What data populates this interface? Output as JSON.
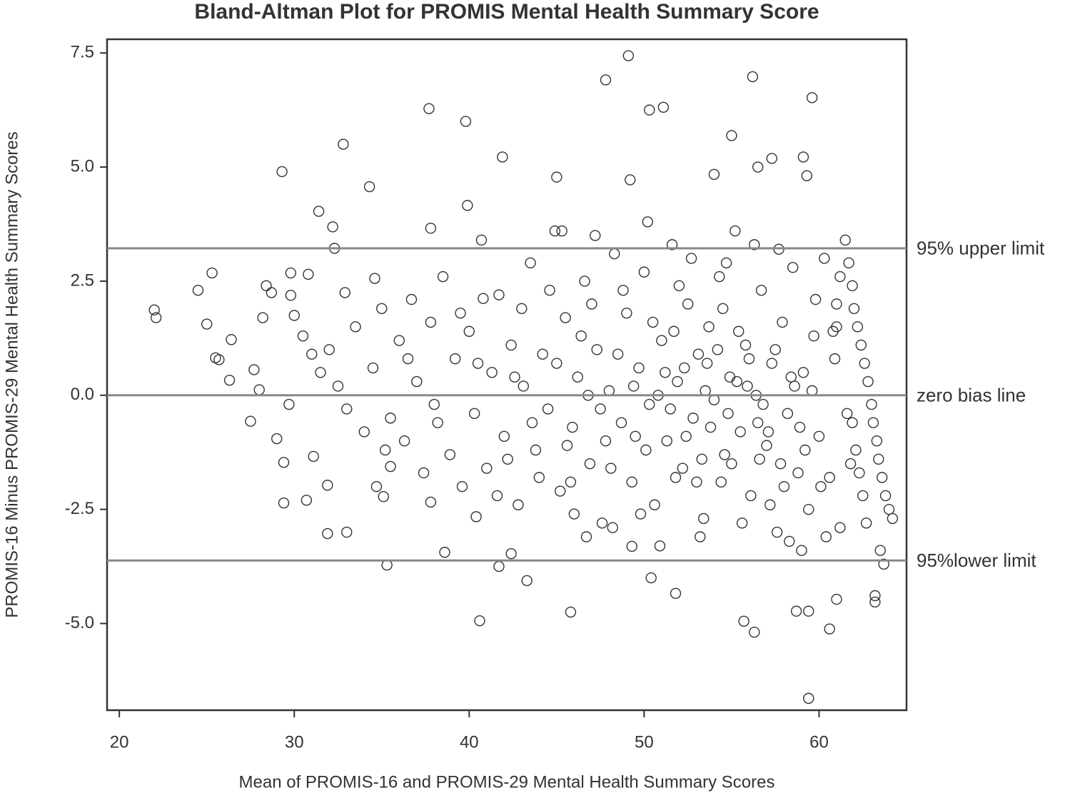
{
  "chart_data": {
    "type": "scatter",
    "title": "Bland-Altman Plot for PROMIS Mental Health Summary Score",
    "x_label": "Mean of PROMIS-16 and PROMIS-29 Mental Health Summary Scores",
    "y_label": "PROMIS-16 Minus PROMIS-29 Mental Health Summary Scores",
    "xlim": [
      19.3,
      65
    ],
    "ylim": [
      -6.9,
      7.8
    ],
    "xticks": [
      20,
      30,
      40,
      50,
      60
    ],
    "yticks": [
      7.5,
      {
        "value": 5,
        "label": "5.0"
      },
      2.5,
      {
        "value": 0,
        "label": "0.0"
      },
      -2.5,
      {
        "value": -5,
        "label": "-5.0"
      }
    ],
    "grid": false,
    "color": "#333333",
    "reference_lines": [
      {
        "value": 3.22,
        "label": "95% upper limit",
        "color": "#888888"
      },
      {
        "value": 0,
        "label": "zero bias line",
        "color": "#888888"
      },
      {
        "value": -3.62,
        "label": "95%lower limit",
        "color": "#888888"
      }
    ],
    "x": [
      22.0,
      22.1,
      24.5,
      25.3,
      25.0,
      25.5,
      25.7,
      26.4,
      26.3,
      27.5,
      27.7,
      28.0,
      28.2,
      28.4,
      28.7,
      29.3,
      29.0,
      29.4,
      29.4,
      29.7,
      29.8,
      29.8,
      30.0,
      30.7,
      30.8,
      31.1,
      31.4,
      31.9,
      31.9,
      32.2,
      32.3,
      32.8,
      33.0,
      32.9,
      34.3,
      34.6,
      34.7,
      35.1,
      35.3,
      35.5,
      37.7,
      37.8,
      37.8,
      38.6,
      39.8,
      39.9,
      40.6,
      40.4,
      40.8,
      41.9,
      41.7,
      43.3,
      42.4,
      45.0,
      45.8,
      47.8,
      49.1,
      50.3,
      51.1,
      49.2,
      49.3,
      50.4,
      51.8,
      54.0,
      55.0,
      56.2,
      59.6,
      59.4,
      56.3,
      60.6,
      55.7,
      59.1,
      59.3,
      57.3,
      56.5,
      63.2,
      63.2,
      61.0,
      59.4,
      58.7,
      30.5,
      31.0,
      31.5,
      32.0,
      32.5,
      33.0,
      33.5,
      34.0,
      34.5,
      35.0,
      35.5,
      36.0,
      36.3,
      36.7,
      37.0,
      37.4,
      37.8,
      38.2,
      38.5,
      38.9,
      39.2,
      39.6,
      40.0,
      40.3,
      40.7,
      41.0,
      41.3,
      41.7,
      42.0,
      42.4,
      42.8,
      43.1,
      43.5,
      43.8,
      44.2,
      44.5,
      44.9,
      45.2,
      45.5,
      45.9,
      46.2,
      46.6,
      46.9,
      47.3,
      47.6,
      48.0,
      48.3,
      48.7,
      49.0,
      49.3,
      49.7,
      50.0,
      50.3,
      50.6,
      51.0,
      51.3,
      51.6,
      51.9,
      52.2,
      52.5,
      52.8,
      53.1,
      53.4,
      53.7,
      54.0,
      54.3,
      54.6,
      54.9,
      55.2,
      55.5,
      55.8,
      56.1,
      56.4,
      56.7,
      57.0,
      57.3,
      57.6,
      57.9,
      58.2,
      58.5,
      58.8,
      59.1,
      59.4,
      59.7,
      60.0,
      60.3,
      60.6,
      60.9,
      61.2,
      42.2,
      43.0,
      44.0,
      45.0,
      46.0,
      47.0,
      47.8,
      48.5,
      49.5,
      50.5,
      51.5,
      52.0,
      53.0,
      53.5,
      54.5,
      55.0,
      56.0,
      56.5,
      57.5,
      58.0,
      58.6,
      59.2,
      59.8,
      60.4,
      61.0,
      61.6,
      52.3,
      53.8,
      55.3,
      56.8,
      54.2,
      51.8,
      50.8,
      49.8,
      48.8,
      47.5,
      46.4,
      45.6,
      44.6,
      43.6,
      42.6,
      41.6,
      40.5,
      39.5,
      38.0,
      36.5,
      35.2,
      57.2,
      58.3,
      59.0,
      60.1,
      55.6,
      53.2,
      50.9,
      48.2,
      46.7,
      54.7,
      56.3,
      57.7,
      52.7,
      50.2,
      47.2,
      45.3,
      61.5,
      61.7,
      61.9,
      62.0,
      62.2,
      62.4,
      62.6,
      62.8,
      63.0,
      63.1,
      63.3,
      63.4,
      63.6,
      63.8,
      64.0,
      64.2,
      62.7,
      62.5,
      62.3,
      62.1,
      61.9,
      61.8,
      63.7,
      63.5,
      61.2,
      61.0,
      60.8,
      51.2,
      52.4,
      53.6,
      54.8,
      55.9,
      57.1,
      58.4,
      50.1,
      51.7,
      53.3,
      54.4,
      55.4,
      56.6,
      57.8,
      58.9,
      59.6,
      49.4,
      48.1,
      46.8,
      45.8
    ],
    "y": [
      1.87,
      1.7,
      2.3,
      2.68,
      1.56,
      0.82,
      0.78,
      1.22,
      0.33,
      -0.57,
      0.56,
      0.12,
      1.7,
      2.4,
      2.25,
      4.9,
      -0.95,
      -2.36,
      -1.47,
      -0.2,
      2.68,
      2.19,
      1.75,
      -2.3,
      2.65,
      -1.34,
      4.03,
      -1.97,
      -3.03,
      3.69,
      3.22,
      5.5,
      -3.0,
      2.25,
      4.57,
      2.56,
      -2.0,
      -2.22,
      -3.72,
      -1.56,
      6.28,
      -2.34,
      3.66,
      -3.44,
      6.0,
      4.16,
      -4.94,
      -2.66,
      2.12,
      5.22,
      -3.75,
      -4.06,
      -3.47,
      4.78,
      -4.75,
      6.91,
      7.44,
      6.25,
      6.31,
      4.72,
      -3.31,
      -4.0,
      -4.34,
      4.84,
      5.69,
      6.98,
      6.52,
      -6.64,
      -5.19,
      -5.12,
      -4.95,
      5.22,
      4.81,
      5.19,
      5.0,
      -4.39,
      -4.53,
      -4.47,
      -4.73,
      -4.73,
      1.3,
      0.9,
      0.5,
      1.0,
      0.2,
      -0.3,
      1.5,
      -0.8,
      0.6,
      1.9,
      -0.5,
      1.2,
      -1.0,
      2.1,
      0.3,
      -1.7,
      1.6,
      -0.6,
      2.6,
      -1.3,
      0.8,
      -2.0,
      1.4,
      -0.4,
      3.4,
      -1.6,
      0.5,
      2.2,
      -0.9,
      1.1,
      -2.4,
      0.2,
      2.9,
      -1.2,
      0.9,
      -0.3,
      3.6,
      -2.1,
      1.7,
      -0.7,
      0.4,
      2.5,
      -1.5,
      1.0,
      -2.8,
      0.1,
      3.1,
      -0.6,
      1.8,
      -1.9,
      0.6,
      2.7,
      -0.2,
      -2.4,
      1.2,
      -1.0,
      3.3,
      0.3,
      -1.6,
      2.0,
      -0.5,
      0.9,
      -2.7,
      1.5,
      -0.1,
      2.6,
      -1.3,
      0.4,
      3.6,
      -0.8,
      1.1,
      -2.2,
      0.0,
      2.3,
      -1.1,
      0.7,
      -3.0,
      1.6,
      -0.4,
      2.8,
      -1.7,
      0.5,
      -2.5,
      1.3,
      -0.9,
      3.0,
      -1.8,
      0.8,
      -2.9,
      -1.4,
      1.9,
      -1.8,
      0.7,
      -2.6,
      2.0,
      -1.0,
      0.9,
      -0.9,
      1.6,
      -0.3,
      2.4,
      -1.9,
      0.1,
      1.9,
      -1.5,
      0.8,
      -0.6,
      1.0,
      -2.0,
      0.2,
      -1.2,
      2.1,
      -3.1,
      1.5,
      -0.4,
      0.6,
      -0.7,
      0.3,
      -0.2,
      1.0,
      -1.8,
      0.0,
      -2.6,
      2.3,
      -0.3,
      1.3,
      -1.1,
      2.3,
      -0.6,
      0.4,
      -2.2,
      0.7,
      1.8,
      -0.2,
      0.8,
      -1.2,
      -2.4,
      -3.2,
      -3.4,
      -2.0,
      -2.8,
      -3.1,
      -3.3,
      -2.9,
      -3.1,
      2.9,
      3.3,
      3.2,
      3.0,
      3.8,
      3.5,
      3.6,
      3.4,
      2.9,
      2.4,
      1.9,
      1.5,
      1.1,
      0.7,
      0.3,
      -0.2,
      -0.6,
      -1.0,
      -1.4,
      -1.8,
      -2.2,
      -2.5,
      -2.7,
      -2.8,
      -2.2,
      -1.7,
      -1.2,
      -0.6,
      -1.5,
      -3.7,
      -3.4,
      2.6,
      2.0,
      1.4,
      0.5,
      -0.9,
      0.7,
      -0.4,
      0.2,
      -0.8,
      0.4,
      -1.2,
      1.4,
      -1.4,
      -1.9,
      1.4,
      -1.4,
      -1.5,
      -0.7,
      0.1,
      0.2,
      -1.6,
      0.0,
      -1.9
    ]
  }
}
